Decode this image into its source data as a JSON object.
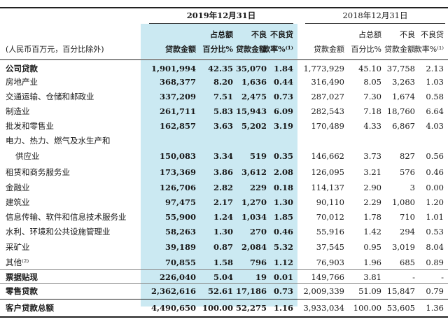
{
  "header": {
    "year_2019": "2019年12月31日",
    "year_2018": "2018年12月31日",
    "unit_note": "(人民币百万元，百分比除外)",
    "cols_2019": [
      {
        "line1": "",
        "line2": "贷款金额"
      },
      {
        "line1": "占总额",
        "line2": "百分比%"
      },
      {
        "line1": "不良",
        "line2": "贷款金额"
      },
      {
        "line1": "不良贷",
        "line2": "款率%⁽¹⁾"
      }
    ],
    "cols_2018": [
      {
        "line1": "",
        "line2": "贷款金额"
      },
      {
        "line1": "占总额",
        "line2": "百分比%"
      },
      {
        "line1": "不良",
        "line2": "贷款金额"
      },
      {
        "line1": "不良贷",
        "line2": "款率%⁽¹⁾"
      }
    ]
  },
  "rows": [
    {
      "label": "公司贷款",
      "bold": true,
      "v2019": [
        "1,901,994",
        "42.35",
        "35,070",
        "1.84"
      ],
      "v2018": [
        "1,773,929",
        "45.10",
        "37,758",
        "2.13"
      ]
    },
    {
      "label": "房地产业",
      "bold": false,
      "v2019": [
        "368,377",
        "8.20",
        "1,636",
        "0.44"
      ],
      "v2018": [
        "316,490",
        "8.05",
        "3,263",
        "1.03"
      ]
    },
    {
      "label": "交通运输、仓储和邮政业",
      "bold": false,
      "v2019": [
        "337,209",
        "7.51",
        "2,475",
        "0.73"
      ],
      "v2018": [
        "287,027",
        "7.30",
        "1,674",
        "0.58"
      ]
    },
    {
      "label": "制造业",
      "bold": false,
      "v2019": [
        "261,711",
        "5.83",
        "15,943",
        "6.09"
      ],
      "v2018": [
        "282,543",
        "7.18",
        "18,760",
        "6.64"
      ]
    },
    {
      "label": "批发和零售业",
      "bold": false,
      "v2019": [
        "162,857",
        "3.63",
        "5,202",
        "3.19"
      ],
      "v2018": [
        "170,489",
        "4.33",
        "6,867",
        "4.03"
      ]
    },
    {
      "label": "电力、热力、燃气及水生产和",
      "label2": "供应业",
      "bold": false,
      "double": true,
      "v2019": [
        "150,083",
        "3.34",
        "519",
        "0.35"
      ],
      "v2018": [
        "146,662",
        "3.73",
        "827",
        "0.56"
      ]
    },
    {
      "label": "租赁和商务服务业",
      "bold": false,
      "v2019": [
        "173,369",
        "3.86",
        "3,612",
        "2.08"
      ],
      "v2018": [
        "126,095",
        "3.21",
        "576",
        "0.46"
      ]
    },
    {
      "label": "金融业",
      "bold": false,
      "v2019": [
        "126,706",
        "2.82",
        "229",
        "0.18"
      ],
      "v2018": [
        "114,137",
        "2.90",
        "3",
        "0.00"
      ]
    },
    {
      "label": "建筑业",
      "bold": false,
      "v2019": [
        "97,475",
        "2.17",
        "1,270",
        "1.30"
      ],
      "v2018": [
        "90,110",
        "2.29",
        "1,080",
        "1.20"
      ]
    },
    {
      "label": "信息传输、软件和信息技术服务业",
      "bold": false,
      "v2019": [
        "55,900",
        "1.24",
        "1,034",
        "1.85"
      ],
      "v2018": [
        "70,012",
        "1.78",
        "710",
        "1.01"
      ]
    },
    {
      "label": "水利、环境和公共设施管理业",
      "bold": false,
      "v2019": [
        "58,263",
        "1.30",
        "270",
        "0.46"
      ],
      "v2018": [
        "55,916",
        "1.42",
        "294",
        "0.53"
      ]
    },
    {
      "label": "采矿业",
      "bold": false,
      "v2019": [
        "39,189",
        "0.87",
        "2,084",
        "5.32"
      ],
      "v2018": [
        "37,545",
        "0.95",
        "3,019",
        "8.04"
      ]
    },
    {
      "label": "其他⁽²⁾",
      "bold": false,
      "v2019": [
        "70,855",
        "1.58",
        "796",
        "1.12"
      ],
      "v2018": [
        "76,903",
        "1.96",
        "685",
        "0.89"
      ]
    },
    {
      "label": "票据贴现",
      "bold": true,
      "v2019": [
        "226,040",
        "5.04",
        "19",
        "0.01"
      ],
      "v2018": [
        "149,766",
        "3.81",
        "-",
        "-"
      ]
    },
    {
      "label": "零售贷款",
      "bold": true,
      "v2019": [
        "2,362,616",
        "52.61",
        "17,186",
        "0.73"
      ],
      "v2018": [
        "2,009,339",
        "51.09",
        "15,847",
        "0.79"
      ]
    },
    {
      "label": "客户贷款总额",
      "bold": true,
      "v2019": [
        "4,490,650",
        "100.00",
        "52,275",
        "1.16"
      ],
      "v2018": [
        "3,933,034",
        "100.00",
        "53,605",
        "1.36"
      ]
    }
  ],
  "colors": {
    "highlight": "#cbe9f2",
    "rule": "#222222"
  }
}
